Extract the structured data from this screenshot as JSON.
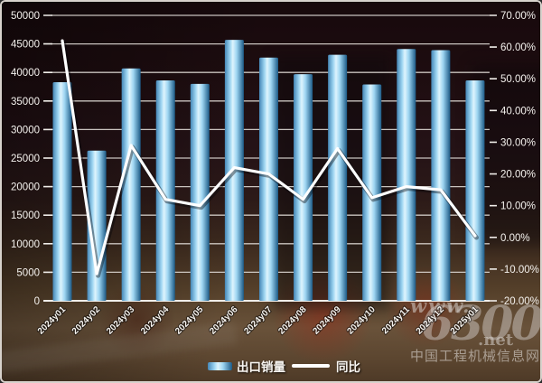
{
  "chart_data": {
    "type": "bar+line combo",
    "categories": [
      "2024y01",
      "2024y02",
      "2024y03",
      "2024y04",
      "2024y05",
      "2024y06",
      "2024y07",
      "2024y08",
      "2024y09",
      "2024y10",
      "2024y11",
      "2024y12",
      "2025y01"
    ],
    "series": [
      {
        "name": "出口销量",
        "type": "bar",
        "axis": "left",
        "values": [
          38300,
          26300,
          40700,
          38600,
          38000,
          45700,
          42600,
          39700,
          43100,
          37900,
          44100,
          43900,
          38600
        ]
      },
      {
        "name": "同比",
        "type": "line",
        "axis": "right",
        "unit": "%",
        "values": [
          62,
          -11.5,
          29,
          12,
          10,
          22,
          20,
          12,
          28,
          12.5,
          16,
          15,
          0.5
        ]
      }
    ],
    "left_axis": {
      "min": 0,
      "max": 50000,
      "tick_labels": [
        "0",
        "5000",
        "10000",
        "15000",
        "20000",
        "25000",
        "30000",
        "35000",
        "40000",
        "45000",
        "50000"
      ]
    },
    "right_axis": {
      "min": -20,
      "max": 70,
      "tick_labels": [
        "-20.00%",
        "-10.00%",
        "0.00%",
        "10.00%",
        "20.00%",
        "30.00%",
        "40.00%",
        "50.00%",
        "60.00%",
        "70.00%"
      ]
    },
    "grid": true,
    "legend_position": "bottom",
    "title": ""
  },
  "watermark": {
    "www": "www.",
    "number": "6300",
    "net": ".net",
    "site_name": "中国工程机械信息网"
  },
  "colors": {
    "bar_edge_left": "#4486b6",
    "bar_mid": "#9fd6f2",
    "bar_light": "#def4fd",
    "bar_edge_right": "#1c5a86",
    "line": "#ffffff",
    "grid": "#dcd7d2",
    "axis": "#f0ede9",
    "text": "#f5f2ee"
  }
}
